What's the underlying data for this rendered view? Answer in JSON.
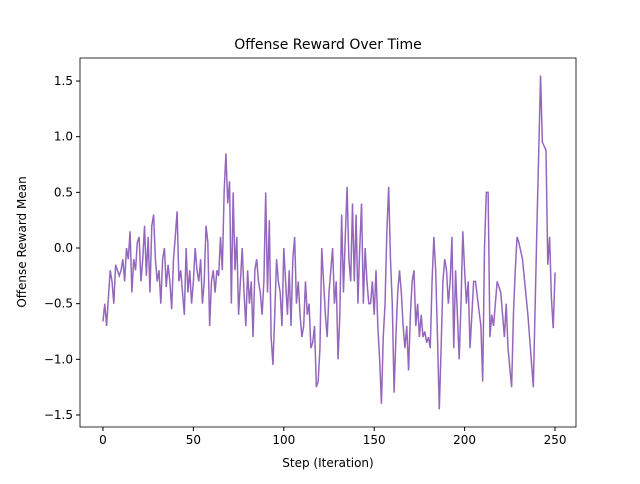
{
  "chart_data": {
    "type": "line",
    "title": "Offense Reward Over Time",
    "x_label": "Step (Iteration)",
    "y_label": "Offense Reward Mean",
    "x": [
      0,
      1,
      2,
      3,
      4,
      5,
      6,
      7,
      9,
      10,
      11,
      12,
      13,
      14,
      15,
      16,
      17,
      18,
      19,
      20,
      21,
      22,
      23,
      24,
      25,
      26,
      27,
      28,
      29,
      30,
      31,
      32,
      33,
      34,
      35,
      36,
      37,
      38,
      39,
      40,
      41,
      42,
      43,
      44,
      45,
      46,
      47,
      48,
      49,
      50,
      51,
      52,
      53,
      54,
      55,
      56,
      57,
      58,
      59,
      60,
      61,
      62,
      63,
      64,
      65,
      66,
      67,
      68,
      69,
      70,
      71,
      72,
      73,
      74,
      75,
      76,
      77,
      78,
      79,
      80,
      81,
      82,
      83,
      84,
      85,
      86,
      87,
      88,
      89,
      90,
      91,
      92,
      93,
      94,
      95,
      96,
      97,
      98,
      99,
      100,
      101,
      102,
      103,
      104,
      105,
      106,
      107,
      108,
      109,
      110,
      111,
      112,
      113,
      114,
      115,
      116,
      117,
      118,
      119,
      120,
      121,
      122,
      123,
      124,
      125,
      126,
      127,
      128,
      129,
      130,
      131,
      132,
      133,
      134,
      135,
      136,
      137,
      138,
      139,
      140,
      141,
      142,
      143,
      144,
      145,
      146,
      147,
      148,
      149,
      150,
      151,
      152,
      153,
      154,
      155,
      156,
      157,
      158,
      159,
      160,
      161,
      162,
      163,
      164,
      165,
      166,
      167,
      168,
      169,
      170,
      171,
      172,
      173,
      174,
      175,
      176,
      177,
      178,
      179,
      180,
      181,
      182,
      183,
      184,
      185,
      186,
      187,
      188,
      189,
      190,
      191,
      192,
      193,
      194,
      195,
      196,
      197,
      198,
      199,
      200,
      201,
      202,
      203,
      204,
      205,
      206,
      209,
      210,
      211,
      212,
      213,
      214,
      215,
      216,
      217,
      218,
      220,
      222,
      223,
      224,
      226,
      227,
      228,
      229,
      230,
      232,
      235,
      238,
      240,
      242,
      243,
      245,
      246,
      247,
      248,
      249,
      250
    ],
    "series": [
      {
        "name": "Offense Reward Mean",
        "color": "#9467bd",
        "values": [
          -0.66,
          -0.5,
          -0.7,
          -0.45,
          -0.2,
          -0.3,
          -0.5,
          -0.15,
          -0.25,
          -0.2,
          -0.1,
          -0.3,
          0.0,
          -0.1,
          0.15,
          -0.4,
          -0.1,
          -0.2,
          0.05,
          0.1,
          -0.3,
          -0.1,
          0.2,
          -0.25,
          0.1,
          -0.4,
          0.2,
          0.3,
          -0.1,
          -0.3,
          -0.2,
          -0.5,
          -0.1,
          0.0,
          -0.35,
          -0.15,
          -0.3,
          -0.55,
          -0.1,
          0.1,
          0.33,
          -0.3,
          -0.2,
          -0.4,
          -0.6,
          0.0,
          -0.4,
          -0.2,
          -0.5,
          -0.3,
          0.0,
          -0.2,
          -0.3,
          -0.1,
          -0.5,
          -0.3,
          0.2,
          0.05,
          -0.7,
          -0.3,
          -0.2,
          -0.4,
          -0.2,
          -0.25,
          0.1,
          -0.2,
          0.5,
          0.85,
          0.4,
          0.6,
          -0.5,
          0.5,
          -0.2,
          0.1,
          -0.6,
          -0.3,
          0.0,
          -0.4,
          -0.7,
          -0.2,
          -0.5,
          -0.3,
          -0.8,
          -0.2,
          -0.1,
          -0.3,
          -0.4,
          -0.6,
          -0.3,
          0.5,
          -0.4,
          0.25,
          -0.8,
          -1.05,
          -0.6,
          -0.1,
          -0.3,
          -0.4,
          -0.7,
          0.0,
          -0.3,
          -0.6,
          -0.2,
          -0.7,
          -0.1,
          0.1,
          -0.5,
          -0.3,
          -0.6,
          -0.8,
          -0.7,
          -0.3,
          -0.6,
          -0.5,
          -0.9,
          -0.85,
          -0.7,
          -1.25,
          -1.2,
          -0.9,
          0.0,
          -0.3,
          -0.6,
          -0.8,
          -0.4,
          -0.2,
          0.0,
          -0.5,
          -0.3,
          -1.0,
          -0.6,
          0.3,
          -0.4,
          0.1,
          0.55,
          -0.1,
          -0.3,
          0.4,
          -0.3,
          0.3,
          -0.5,
          0.0,
          0.4,
          -0.5,
          0.0,
          -0.3,
          -0.5,
          -0.5,
          -0.3,
          -0.6,
          -0.2,
          -0.7,
          -1.0,
          -1.4,
          -0.8,
          -0.5,
          0.15,
          0.55,
          -0.1,
          -0.5,
          -1.3,
          -0.8,
          -0.4,
          -0.2,
          -0.4,
          -0.7,
          -0.9,
          -0.7,
          -1.1,
          -0.6,
          -0.3,
          -0.2,
          -0.7,
          -0.5,
          -0.8,
          -0.6,
          -0.8,
          -0.75,
          -0.85,
          -0.8,
          -0.9,
          -0.3,
          0.1,
          -0.2,
          -0.8,
          -1.45,
          -0.9,
          -0.3,
          -0.1,
          -0.2,
          -0.5,
          -0.3,
          0.1,
          -0.9,
          -0.2,
          -0.6,
          -1.0,
          -0.5,
          0.15,
          -0.2,
          -0.5,
          -0.3,
          -0.9,
          -0.6,
          -0.3,
          -0.3,
          -0.7,
          -1.2,
          0.0,
          0.5,
          0.5,
          -0.8,
          -0.6,
          -0.7,
          -0.5,
          -0.3,
          -0.4,
          -0.8,
          -0.5,
          -0.9,
          -1.25,
          -0.6,
          -0.2,
          0.1,
          0.05,
          -0.1,
          -0.6,
          -1.25,
          0.2,
          1.55,
          0.95,
          0.88,
          -0.15,
          0.1,
          -0.45,
          -0.72,
          -0.22
        ]
      }
    ],
    "xlim": [
      -12.7,
      261.6
    ],
    "ylim": [
      -1.608,
      1.707
    ],
    "xticks": [
      0,
      50,
      100,
      150,
      200,
      250
    ],
    "yticks": [
      {
        "value": -1.5,
        "label": "−1.5"
      },
      {
        "value": -1.0,
        "label": "−1.0"
      },
      {
        "value": -0.5,
        "label": "−0.5"
      },
      {
        "value": 0.0,
        "label": "0.0"
      },
      {
        "value": 0.5,
        "label": "0.5"
      },
      {
        "value": 1.0,
        "label": "1.0"
      },
      {
        "value": 1.5,
        "label": "1.5"
      }
    ]
  }
}
